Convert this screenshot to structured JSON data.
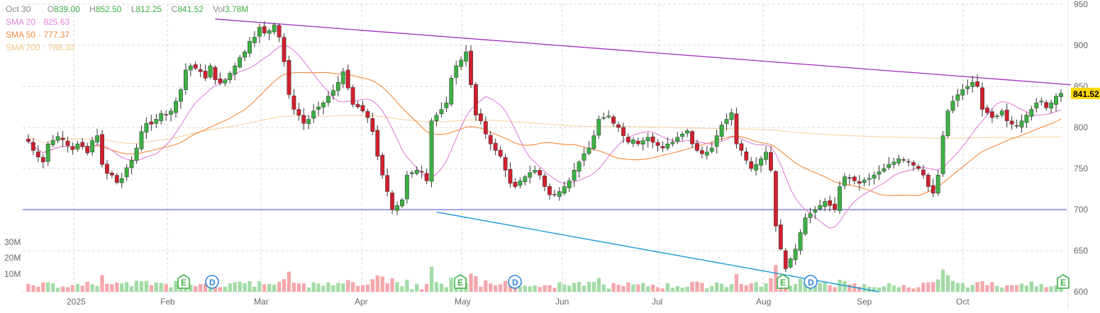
{
  "legend": {
    "date": "Oct 30",
    "open_label": "O",
    "open": "839.00",
    "high_label": "H",
    "high": "852.50",
    "low_label": "L",
    "low": "812.25",
    "close_label": "C",
    "close": "841.52",
    "vol_label": "Vol",
    "vol": "3.78M",
    "sma20_label": "SMA 20",
    "sma20": "825.63",
    "sma50_label": "SMA 50",
    "sma50": "777.37",
    "sma200_label": "SMA 200",
    "sma200": "788.30"
  },
  "colors": {
    "up": "#3cb043",
    "down": "#d0202e",
    "up_vol": "#a3dba6",
    "down_vol": "#f4a7ac",
    "sma20": "#e37fd8",
    "sma50": "#f5883a",
    "sma200": "#f7d2a0",
    "resistance": "#a63bc2",
    "support": "#1a9ad6",
    "horizontal": "#6b6bd6",
    "grid": "#d9d9d9",
    "axis_text": "#666666",
    "last_price_bg": "#ffd700",
    "marker_e": "#3cb043",
    "marker_d": "#2f86d9"
  },
  "chart_data": {
    "type": "candlestick",
    "x_tick_labels": [
      "2025",
      "Feb",
      "Mar",
      "Apr",
      "May",
      "Jun",
      "Jul",
      "Aug",
      "Sep",
      "Oct"
    ],
    "price_axis": {
      "ticks": [
        950,
        900,
        850,
        800,
        750,
        700,
        650,
        600
      ],
      "range": [
        600,
        950
      ]
    },
    "volume_axis": {
      "ticks": [
        "30M",
        "20M",
        "10M"
      ]
    },
    "last_price": "841.52",
    "grid": true,
    "closes": [
      783,
      772,
      764,
      758,
      780,
      784,
      789,
      785,
      778,
      773,
      780,
      777,
      769,
      784,
      790,
      755,
      744,
      742,
      733,
      738,
      751,
      760,
      775,
      795,
      805,
      804,
      810,
      817,
      815,
      820,
      832,
      846,
      870,
      875,
      872,
      868,
      860,
      875,
      858,
      854,
      858,
      866,
      875,
      885,
      892,
      905,
      910,
      922,
      915,
      918,
      925,
      910,
      880,
      840,
      822,
      815,
      805,
      810,
      820,
      825,
      830,
      838,
      845,
      855,
      868,
      848,
      828,
      825,
      820,
      812,
      795,
      765,
      742,
      722,
      700,
      705,
      712,
      742,
      745,
      748,
      746,
      735,
      808,
      815,
      822,
      830,
      860,
      875,
      882,
      892,
      852,
      815,
      808,
      792,
      780,
      772,
      765,
      748,
      732,
      728,
      735,
      740,
      745,
      748,
      742,
      728,
      718,
      718,
      722,
      728,
      735,
      748,
      758,
      768,
      775,
      790,
      810,
      812,
      814,
      805,
      800,
      790,
      782,
      785,
      780,
      784,
      788,
      782,
      778,
      775,
      780,
      782,
      788,
      792,
      796,
      780,
      772,
      768,
      770,
      775,
      790,
      803,
      810,
      818,
      780,
      772,
      760,
      750,
      755,
      762,
      770,
      748,
      680,
      652,
      628,
      640,
      652,
      672,
      690,
      695,
      700,
      705,
      710,
      705,
      700,
      728,
      740,
      738,
      735,
      732,
      736,
      738,
      742,
      746,
      750,
      755,
      758,
      762,
      760,
      758,
      754,
      750,
      742,
      728,
      720,
      742,
      790,
      820,
      832,
      840,
      846,
      850,
      855,
      850,
      822,
      818,
      812,
      814,
      820,
      808,
      804,
      802,
      808,
      815,
      822,
      830,
      832,
      824,
      830,
      838,
      841.52
    ],
    "annotations": {
      "events": [
        {
          "type": "E",
          "label": "E"
        },
        {
          "type": "D",
          "label": "D"
        },
        {
          "type": "E",
          "label": "E"
        },
        {
          "type": "D",
          "label": "D"
        },
        {
          "type": "E",
          "label": "E"
        },
        {
          "type": "D",
          "label": "D"
        },
        {
          "type": "E",
          "label": "E"
        }
      ],
      "horizontal_line": 700,
      "resistance_line": [
        [
          38,
          932
        ],
        [
          212,
          852
        ]
      ],
      "support_line": [
        [
          83,
          697
        ],
        [
          173,
          600
        ]
      ]
    }
  }
}
